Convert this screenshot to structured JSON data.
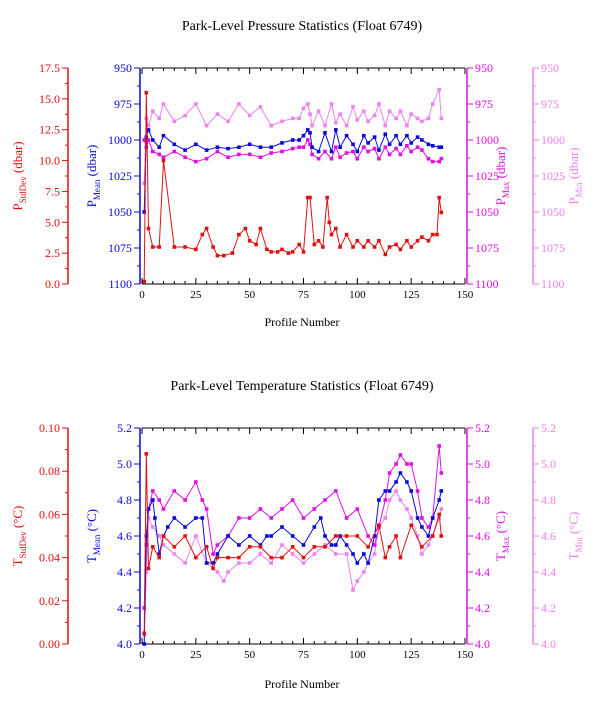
{
  "footer_stamp": "",
  "colors": {
    "stddev": "#e01010",
    "mean": "#0a0ad8",
    "max": "#e010e0",
    "min": "#ee82ee",
    "axis": "#000000"
  },
  "chart_data": [
    {
      "type": "line",
      "title": "Park-Level Pressure Statistics (Float 6749)",
      "xlabel": "Profile Number",
      "xlim": [
        0,
        150
      ],
      "x_ticks": [
        0,
        25,
        50,
        75,
        100,
        125,
        150
      ],
      "x_tick_labels": [
        "0",
        "25",
        "50",
        "75",
        "100",
        "125",
        "150"
      ],
      "axes": [
        {
          "id": "stddev",
          "label_main": "P",
          "label_sub": "StdDev",
          "label_tail": " (dbar)",
          "lim": [
            0,
            17.5
          ],
          "inverted": false,
          "ticks": [
            0,
            2.5,
            5,
            7.5,
            10,
            12.5,
            15,
            17.5
          ],
          "tick_labels": [
            "0.0",
            "2.5",
            "5.0",
            "7.5",
            "10.0",
            "12.5",
            "15.0",
            "17.5"
          ]
        },
        {
          "id": "mean",
          "label_main": "P",
          "label_sub": "Mean",
          "label_tail": " (dbar)",
          "lim": [
            950,
            1100
          ],
          "inverted": true,
          "ticks": [
            950,
            975,
            1000,
            1025,
            1050,
            1075,
            1100
          ],
          "tick_labels": [
            "950",
            "975",
            "1000",
            "1025",
            "1050",
            "1075",
            "1100"
          ]
        },
        {
          "id": "max",
          "label_main": "P",
          "label_sub": "Max",
          "label_tail": " (dbar)",
          "lim": [
            950,
            1100
          ],
          "inverted": true,
          "ticks": [
            950,
            975,
            1000,
            1025,
            1050,
            1075,
            1100
          ],
          "tick_labels": [
            "950",
            "975",
            "1000",
            "1025",
            "1050",
            "1075",
            "1100"
          ]
        },
        {
          "id": "min",
          "label_main": "P",
          "label_sub": "Min",
          "label_tail": " (dbar)",
          "lim": [
            950,
            1100
          ],
          "inverted": true,
          "ticks": [
            950,
            975,
            1000,
            1025,
            1050,
            1075,
            1100
          ],
          "tick_labels": [
            "950",
            "975",
            "1000",
            "1025",
            "1050",
            "1075",
            "1100"
          ]
        }
      ],
      "series": [
        {
          "axis": "stddev",
          "x": [
            1,
            2,
            3,
            5,
            8,
            10,
            15,
            20,
            25,
            28,
            30,
            33,
            35,
            38,
            42,
            45,
            48,
            50,
            53,
            55,
            58,
            60,
            63,
            65,
            68,
            70,
            73,
            75,
            77,
            78,
            80,
            82,
            84,
            86,
            87,
            88,
            90,
            92,
            95,
            98,
            100,
            103,
            105,
            108,
            110,
            113,
            115,
            118,
            120,
            123,
            125,
            128,
            130,
            133,
            135,
            137,
            138,
            139
          ],
          "y": [
            0.2,
            15.5,
            4.5,
            3.0,
            3.0,
            10.0,
            3.0,
            3.0,
            2.8,
            4.0,
            4.5,
            3.0,
            2.3,
            2.3,
            2.5,
            4.0,
            4.5,
            3.5,
            3.2,
            4.5,
            2.8,
            2.6,
            2.6,
            2.8,
            2.5,
            2.6,
            3.2,
            2.6,
            7.0,
            7.0,
            3.2,
            3.5,
            3.0,
            7.0,
            5.0,
            4.0,
            4.5,
            3.0,
            4.0,
            3.0,
            3.5,
            3.0,
            3.5,
            3.0,
            3.5,
            2.4,
            3.0,
            3.2,
            2.8,
            3.5,
            3.0,
            3.5,
            3.8,
            3.5,
            4.0,
            4.0,
            7.0,
            5.8
          ]
        },
        {
          "axis": "mean",
          "x": [
            1,
            2,
            3,
            5,
            8,
            10,
            15,
            20,
            25,
            30,
            35,
            40,
            45,
            50,
            55,
            60,
            65,
            70,
            73,
            75,
            77,
            78,
            79,
            82,
            85,
            88,
            90,
            92,
            95,
            98,
            100,
            103,
            105,
            108,
            110,
            113,
            115,
            118,
            120,
            123,
            125,
            128,
            130,
            133,
            135,
            138,
            139
          ],
          "y": [
            1050,
            998,
            993,
            1000,
            1005,
            997,
            1003,
            1007,
            1003,
            1007,
            1005,
            1006,
            1005,
            1003,
            1005,
            1005,
            1002,
            1000,
            1000,
            997,
            993,
            995,
            1005,
            1008,
            995,
            1008,
            993,
            1005,
            997,
            1003,
            1008,
            997,
            1002,
            998,
            1007,
            996,
            1003,
            997,
            1003,
            997,
            1002,
            998,
            1000,
            1003,
            1004,
            1005,
            1005
          ]
        },
        {
          "axis": "max",
          "x": [
            1,
            2,
            3,
            5,
            8,
            10,
            15,
            20,
            25,
            30,
            35,
            40,
            45,
            50,
            55,
            60,
            65,
            70,
            73,
            75,
            77,
            78,
            79,
            82,
            85,
            88,
            90,
            92,
            95,
            98,
            100,
            103,
            105,
            108,
            110,
            113,
            115,
            118,
            120,
            123,
            125,
            128,
            130,
            133,
            135,
            138,
            139
          ],
          "y": [
            1000,
            1005,
            1000,
            1008,
            1010,
            1012,
            1008,
            1012,
            1015,
            1013,
            1008,
            1012,
            1010,
            1010,
            1012,
            1009,
            1008,
            1006,
            1005,
            1005,
            1000,
            1003,
            1010,
            1013,
            1008,
            1013,
            1005,
            1012,
            1009,
            1008,
            1013,
            1005,
            1008,
            1006,
            1013,
            1005,
            1010,
            1006,
            1010,
            1004,
            1008,
            1005,
            1007,
            1013,
            1015,
            1015,
            1013
          ]
        },
        {
          "axis": "min",
          "x": [
            1,
            2,
            3,
            5,
            8,
            10,
            15,
            20,
            25,
            30,
            35,
            40,
            45,
            50,
            55,
            60,
            65,
            70,
            73,
            75,
            77,
            78,
            79,
            82,
            85,
            88,
            90,
            92,
            95,
            98,
            100,
            103,
            105,
            108,
            110,
            113,
            115,
            118,
            120,
            123,
            125,
            128,
            130,
            133,
            135,
            138,
            139
          ],
          "y": [
            1030,
            985,
            990,
            980,
            985,
            975,
            987,
            983,
            975,
            990,
            982,
            987,
            975,
            983,
            977,
            990,
            987,
            985,
            985,
            978,
            975,
            982,
            990,
            980,
            990,
            975,
            988,
            982,
            990,
            977,
            986,
            980,
            987,
            983,
            975,
            990,
            980,
            985,
            980,
            990,
            982,
            985,
            987,
            985,
            975,
            965,
            985
          ]
        }
      ]
    },
    {
      "type": "line",
      "title": "Park-Level Temperature Statistics (Float 6749)",
      "xlabel": "Profile Number",
      "xlim": [
        0,
        150
      ],
      "x_ticks": [
        0,
        25,
        50,
        75,
        100,
        125,
        150
      ],
      "x_tick_labels": [
        "0",
        "25",
        "50",
        "75",
        "100",
        "125",
        "150"
      ],
      "axes": [
        {
          "id": "stddev",
          "label_main": "T",
          "label_sub": "StdDev",
          "label_tail": " (°C)",
          "lim": [
            0,
            0.1
          ],
          "inverted": false,
          "ticks": [
            0,
            0.02,
            0.04,
            0.06,
            0.08,
            0.1
          ],
          "tick_labels": [
            "0.00",
            "0.02",
            "0.04",
            "0.06",
            "0.08",
            "0.10"
          ]
        },
        {
          "id": "mean",
          "label_main": "T",
          "label_sub": "Mean",
          "label_tail": " (°C)",
          "lim": [
            4.0,
            5.2
          ],
          "inverted": false,
          "ticks": [
            4.0,
            4.2,
            4.4,
            4.6,
            4.8,
            5.0,
            5.2
          ],
          "tick_labels": [
            "4.0",
            "4.2",
            "4.4",
            "4.6",
            "4.8",
            "5.0",
            "5.2"
          ]
        },
        {
          "id": "max",
          "label_main": "T",
          "label_sub": "Max",
          "label_tail": " (°C)",
          "lim": [
            4.0,
            5.2
          ],
          "inverted": false,
          "ticks": [
            4.0,
            4.2,
            4.4,
            4.6,
            4.8,
            5.0,
            5.2
          ],
          "tick_labels": [
            "4.0",
            "4.2",
            "4.4",
            "4.6",
            "4.8",
            "5.0",
            "5.2"
          ]
        },
        {
          "id": "min",
          "label_main": "T",
          "label_sub": "Min",
          "label_tail": " (°C)",
          "lim": [
            4.0,
            5.2
          ],
          "inverted": false,
          "ticks": [
            4.0,
            4.2,
            4.4,
            4.6,
            4.8,
            5.0,
            5.2
          ],
          "tick_labels": [
            "4.0",
            "4.2",
            "4.4",
            "4.6",
            "4.8",
            "5.0",
            "5.2"
          ]
        }
      ],
      "series": [
        {
          "axis": "stddev",
          "x": [
            1,
            2,
            3,
            5,
            8,
            10,
            15,
            20,
            25,
            30,
            33,
            35,
            40,
            45,
            50,
            55,
            60,
            65,
            70,
            75,
            80,
            85,
            90,
            95,
            100,
            105,
            110,
            113,
            115,
            118,
            120,
            125,
            130,
            135,
            138,
            139
          ],
          "y": [
            0.005,
            0.088,
            0.035,
            0.045,
            0.04,
            0.05,
            0.045,
            0.05,
            0.04,
            0.045,
            0.035,
            0.04,
            0.04,
            0.04,
            0.045,
            0.045,
            0.04,
            0.04,
            0.045,
            0.04,
            0.045,
            0.045,
            0.05,
            0.05,
            0.05,
            0.045,
            0.055,
            0.04,
            0.045,
            0.05,
            0.04,
            0.055,
            0.045,
            0.05,
            0.06,
            0.05
          ]
        },
        {
          "axis": "mean",
          "x": [
            1,
            2,
            3,
            5,
            6,
            8,
            10,
            12,
            15,
            20,
            25,
            28,
            30,
            33,
            35,
            40,
            45,
            50,
            55,
            58,
            60,
            65,
            70,
            75,
            80,
            83,
            85,
            88,
            90,
            92,
            95,
            98,
            100,
            103,
            105,
            108,
            110,
            113,
            115,
            118,
            120,
            123,
            125,
            128,
            130,
            133,
            135,
            138,
            139
          ],
          "y": [
            4.0,
            4.6,
            4.75,
            4.8,
            4.7,
            4.5,
            4.6,
            4.65,
            4.7,
            4.65,
            4.7,
            4.7,
            4.45,
            4.45,
            4.5,
            4.6,
            4.55,
            4.6,
            4.55,
            4.6,
            4.6,
            4.65,
            4.6,
            4.55,
            4.65,
            4.7,
            4.6,
            4.55,
            4.55,
            4.6,
            4.55,
            4.5,
            4.45,
            4.5,
            4.45,
            4.6,
            4.8,
            4.85,
            4.85,
            4.9,
            4.95,
            4.9,
            4.85,
            4.7,
            4.65,
            4.6,
            4.7,
            4.8,
            4.85
          ]
        },
        {
          "axis": "max",
          "x": [
            1,
            2,
            3,
            5,
            8,
            10,
            15,
            20,
            25,
            28,
            30,
            33,
            35,
            40,
            45,
            50,
            55,
            60,
            65,
            70,
            75,
            80,
            85,
            90,
            95,
            100,
            105,
            108,
            110,
            113,
            115,
            118,
            120,
            123,
            125,
            128,
            130,
            133,
            135,
            138,
            139
          ],
          "y": [
            4.2,
            4.55,
            4.75,
            4.85,
            4.8,
            4.75,
            4.85,
            4.8,
            4.9,
            4.8,
            4.75,
            4.5,
            4.55,
            4.6,
            4.7,
            4.7,
            4.75,
            4.7,
            4.75,
            4.8,
            4.7,
            4.75,
            4.8,
            4.85,
            4.7,
            4.75,
            4.6,
            4.55,
            4.65,
            4.8,
            4.95,
            5.0,
            5.05,
            5.0,
            5.0,
            4.85,
            4.7,
            4.65,
            4.7,
            5.1,
            4.95
          ]
        },
        {
          "axis": "min",
          "x": [
            1,
            2,
            3,
            5,
            8,
            10,
            15,
            20,
            25,
            30,
            35,
            38,
            40,
            45,
            50,
            55,
            60,
            65,
            70,
            75,
            80,
            85,
            90,
            95,
            98,
            100,
            103,
            105,
            108,
            110,
            113,
            115,
            118,
            120,
            123,
            125,
            128,
            130,
            133,
            135,
            138,
            139
          ],
          "y": [
            4.05,
            4.4,
            4.7,
            4.65,
            4.6,
            4.55,
            4.5,
            4.45,
            4.6,
            4.45,
            4.4,
            4.35,
            4.4,
            4.45,
            4.45,
            4.5,
            4.45,
            4.55,
            4.5,
            4.45,
            4.5,
            4.55,
            4.5,
            4.5,
            4.3,
            4.35,
            4.4,
            4.45,
            4.5,
            4.65,
            4.7,
            4.8,
            4.85,
            4.8,
            4.75,
            4.7,
            4.6,
            4.5,
            4.55,
            4.6,
            4.7,
            4.75
          ]
        }
      ]
    }
  ]
}
